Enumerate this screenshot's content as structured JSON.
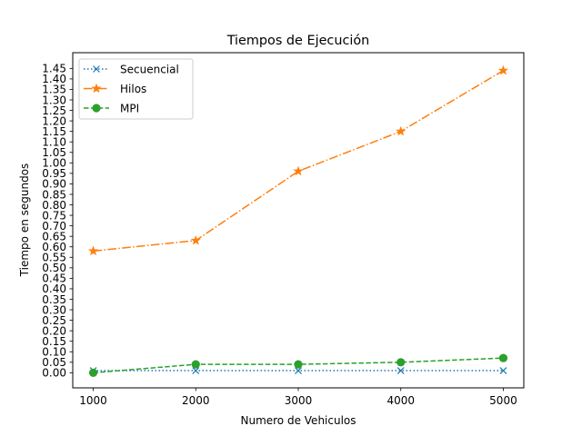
{
  "chart_data": {
    "type": "line",
    "title": "Tiempos de Ejecución",
    "xlabel": "Numero de Vehiculos",
    "ylabel": "Tiempo en segundos",
    "x": [
      1000,
      2000,
      3000,
      4000,
      5000
    ],
    "x_ticks": [
      "1000",
      "2000",
      "3000",
      "4000",
      "5000"
    ],
    "y_ticks": [
      "0.00",
      "0.05",
      "0.10",
      "0.15",
      "0.20",
      "0.25",
      "0.30",
      "0.35",
      "0.40",
      "0.45",
      "0.50",
      "0.55",
      "0.60",
      "0.65",
      "0.70",
      "0.75",
      "0.80",
      "0.85",
      "0.90",
      "0.95",
      "1.00",
      "1.05",
      "1.10",
      "1.15",
      "1.20",
      "1.25",
      "1.30",
      "1.35",
      "1.40",
      "1.45"
    ],
    "xlim": [
      800,
      5200
    ],
    "ylim": [
      -0.072,
      1.525
    ],
    "grid": false,
    "legend_position": "top-left",
    "series": [
      {
        "name": "Secuencial",
        "values": [
          0.01,
          0.01,
          0.01,
          0.01,
          0.01
        ],
        "color": "#1f77b4",
        "linestyle": "dotted",
        "marker": "x"
      },
      {
        "name": "Hilos",
        "values": [
          0.58,
          0.63,
          0.96,
          1.15,
          1.44
        ],
        "color": "#ff7f0e",
        "linestyle": "dashdot",
        "marker": "star"
      },
      {
        "name": "MPI",
        "values": [
          0.0,
          0.04,
          0.04,
          0.05,
          0.07
        ],
        "color": "#2ca02c",
        "linestyle": "dashed",
        "marker": "circle"
      }
    ]
  }
}
